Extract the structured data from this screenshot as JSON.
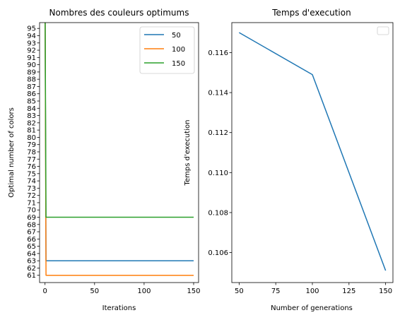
{
  "chart_data": [
    {
      "type": "line",
      "title": "Nombres des couleurs optimums",
      "xlabel": "Iterations",
      "ylabel": "Optimal number of colors",
      "xlim": [
        -5.5,
        155
      ],
      "ylim": [
        60,
        95.8
      ],
      "xticks": [
        0,
        50,
        100,
        150
      ],
      "yticks": [
        61,
        62,
        63,
        64,
        65,
        66,
        67,
        68,
        69,
        70,
        71,
        72,
        73,
        74,
        75,
        76,
        77,
        78,
        79,
        80,
        81,
        82,
        83,
        84,
        85,
        86,
        87,
        88,
        89,
        90,
        91,
        92,
        93,
        94,
        95
      ],
      "legend": "top-right",
      "grid": false,
      "series": [
        {
          "name": "50",
          "color": "#1f77b4",
          "x": [
            0,
            1,
            2,
            150
          ],
          "y": [
            100,
            63,
            63,
            63
          ]
        },
        {
          "name": "100",
          "color": "#ff7f0e",
          "x": [
            0,
            1,
            2,
            150
          ],
          "y": [
            100,
            61,
            61,
            61
          ]
        },
        {
          "name": "150",
          "color": "#2ca02c",
          "x": [
            0,
            1,
            2,
            150
          ],
          "y": [
            100,
            69,
            69,
            69
          ]
        }
      ]
    },
    {
      "type": "line",
      "title": "Temps d'execution",
      "xlabel": "Number of generations",
      "ylabel": "Temps d'execution",
      "xlim": [
        45,
        155
      ],
      "ylim": [
        0.1045,
        0.1175
      ],
      "xticks": [
        50,
        75,
        100,
        125,
        150
      ],
      "yticks": [
        0.106,
        0.108,
        0.11,
        0.112,
        0.114,
        0.116
      ],
      "ytick_labels": [
        "0.106",
        "0.108",
        "0.110",
        "0.112",
        "0.114",
        "0.116"
      ],
      "legend": "top-right (empty)",
      "grid": false,
      "series": [
        {
          "color": "#1f77b4",
          "x": [
            50,
            100,
            150
          ],
          "y": [
            0.117,
            0.1149,
            0.1051
          ]
        }
      ]
    }
  ]
}
